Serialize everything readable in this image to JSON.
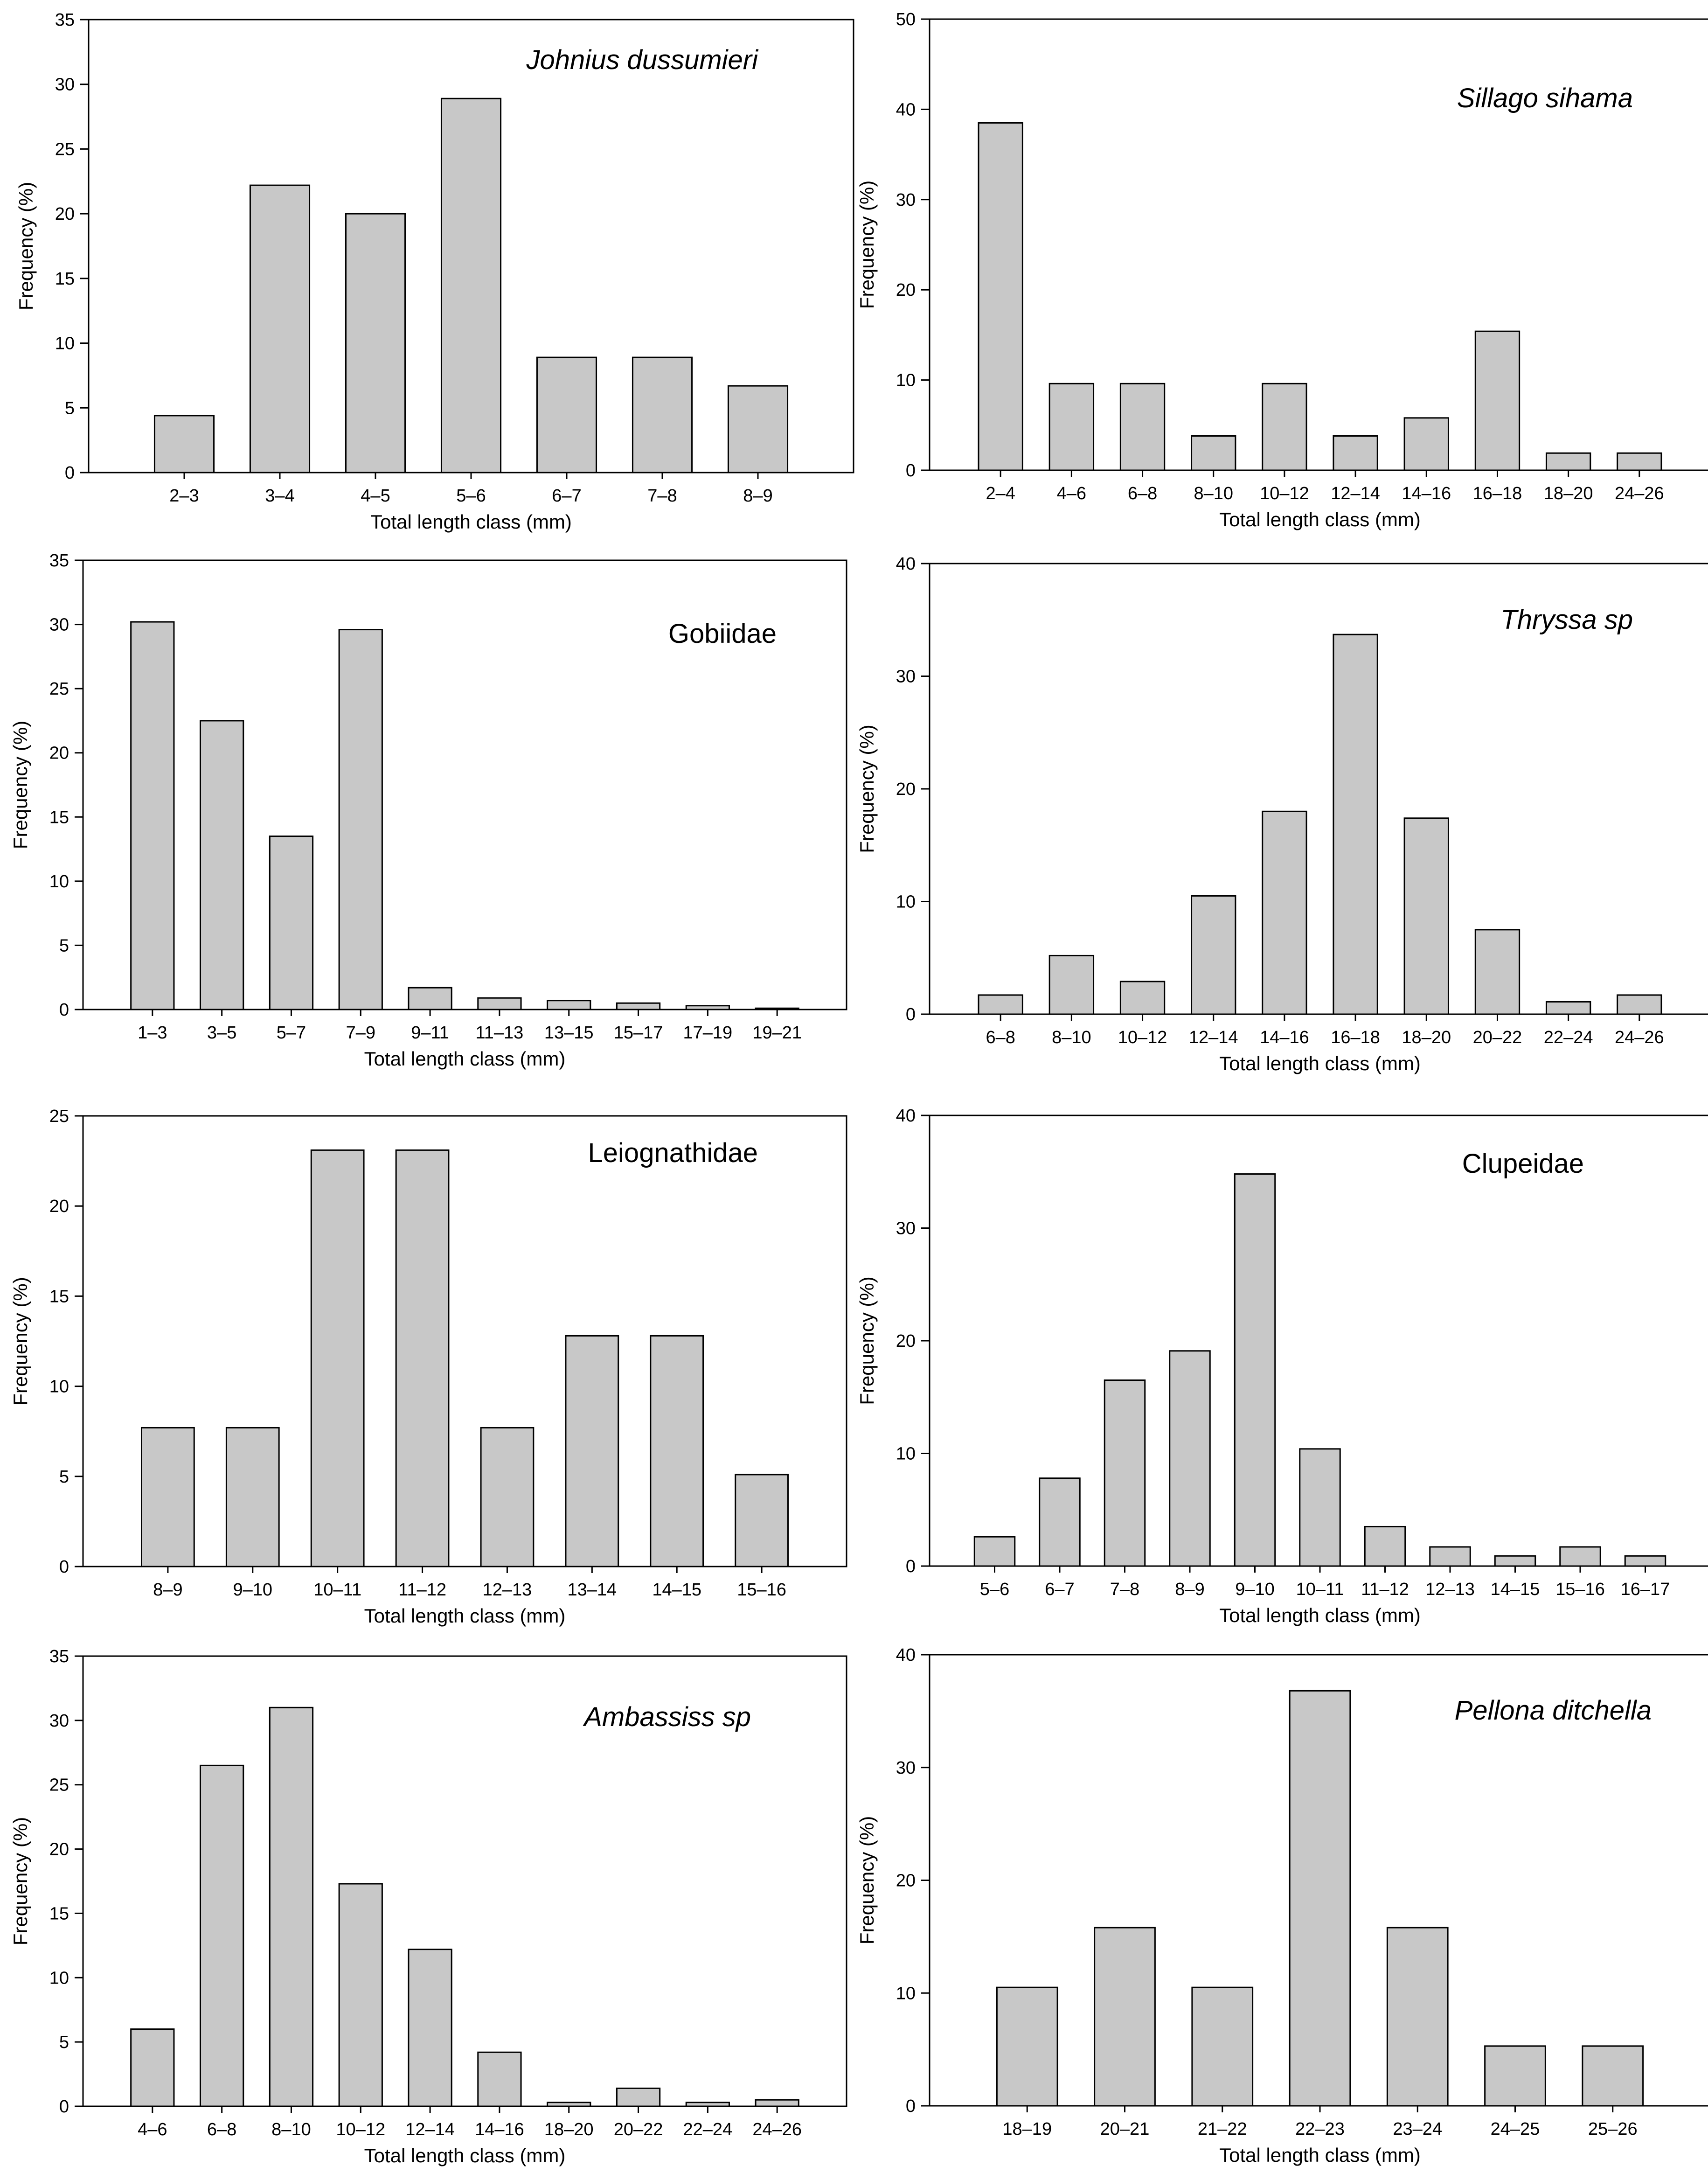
{
  "colors": {
    "bar_fill": "#c8c8c8",
    "bar_stroke": "#000000",
    "axis": "#000000",
    "background": "#ffffff"
  },
  "chart_data": [
    {
      "type": "bar",
      "title": "Johnius dussumieri",
      "title_italic": true,
      "xlabel": "Total length class (mm)",
      "ylabel": "Frequency (%)",
      "categories": [
        "2–3",
        "3–4",
        "4–5",
        "5–6",
        "6–7",
        "7–8",
        "8–9"
      ],
      "values": [
        4.4,
        22.2,
        20.0,
        28.9,
        8.9,
        8.9,
        6.7
      ],
      "ylim": [
        0,
        35
      ],
      "yticks": [
        0,
        5,
        10,
        15,
        20,
        25,
        30,
        35
      ],
      "grid": false
    },
    {
      "type": "bar",
      "title": "Sillago sihama",
      "title_italic": true,
      "xlabel": "Total length class (mm)",
      "ylabel": "Frequency (%)",
      "categories": [
        "2–4",
        "4–6",
        "6–8",
        "8–10",
        "10–12",
        "12–14",
        "14–16",
        "16–18",
        "18–20",
        "24–26"
      ],
      "values": [
        38.5,
        9.6,
        9.6,
        3.8,
        9.6,
        3.8,
        5.8,
        15.4,
        1.9,
        1.9
      ],
      "ylim": [
        0,
        50
      ],
      "yticks": [
        0,
        10,
        20,
        30,
        40,
        50
      ],
      "grid": false
    },
    {
      "type": "bar",
      "title": "Gobiidae",
      "title_italic": false,
      "xlabel": "Total length class (mm)",
      "ylabel": "Frequency (%)",
      "categories": [
        "1–3",
        "3–5",
        "5–7",
        "7–9",
        "9–11",
        "11–13",
        "13–15",
        "15–17",
        "17–19",
        "19–21"
      ],
      "values": [
        30.2,
        22.5,
        13.5,
        29.6,
        1.7,
        0.9,
        0.7,
        0.5,
        0.3,
        0.1
      ],
      "ylim": [
        0,
        35
      ],
      "yticks": [
        0,
        5,
        10,
        15,
        20,
        25,
        30,
        35
      ],
      "grid": false
    },
    {
      "type": "bar",
      "title": "Thryssa sp",
      "title_italic": true,
      "xlabel": "Total length class (mm)",
      "ylabel": "Frequency (%)",
      "categories": [
        "6–8",
        "8–10",
        "10–12",
        "12–14",
        "14–16",
        "16–18",
        "18–20",
        "20–22",
        "22–24",
        "24–26"
      ],
      "values": [
        1.7,
        5.2,
        2.9,
        10.5,
        18.0,
        33.7,
        17.4,
        7.5,
        1.1,
        1.7
      ],
      "ylim": [
        0,
        40
      ],
      "yticks": [
        0,
        10,
        20,
        30,
        40
      ],
      "grid": false
    },
    {
      "type": "bar",
      "title": "Leiognathidae",
      "title_italic": false,
      "xlabel": "Total length class (mm)",
      "ylabel": "Frequency (%)",
      "categories": [
        "8–9",
        "9–10",
        "10–11",
        "11–12",
        "12–13",
        "13–14",
        "14–15",
        "15–16"
      ],
      "values": [
        7.7,
        7.7,
        23.1,
        23.1,
        7.7,
        12.8,
        12.8,
        5.1
      ],
      "ylim": [
        0,
        25
      ],
      "yticks": [
        0,
        5,
        10,
        15,
        20,
        25
      ],
      "grid": false
    },
    {
      "type": "bar",
      "title": "Clupeidae",
      "title_italic": false,
      "xlabel": "Total length class (mm)",
      "ylabel": "Frequency (%)",
      "categories": [
        "5–6",
        "6–7",
        "7–8",
        "8–9",
        "9–10",
        "10–11",
        "11–12",
        "12–13",
        "14–15",
        "15–16",
        "16–17"
      ],
      "values": [
        2.6,
        7.8,
        16.5,
        19.1,
        34.8,
        10.4,
        3.5,
        1.7,
        0.9,
        1.7,
        0.9
      ],
      "ylim": [
        0,
        40
      ],
      "yticks": [
        0,
        10,
        20,
        30,
        40
      ],
      "grid": false
    },
    {
      "type": "bar",
      "title": "Ambassiss sp",
      "title_italic": true,
      "xlabel": "Total length class (mm)",
      "ylabel": "Frequency (%)",
      "categories": [
        "4–6",
        "6–8",
        "8–10",
        "10–12",
        "12–14",
        "14–16",
        "18–20",
        "20–22",
        "22–24",
        "24–26"
      ],
      "values": [
        6.0,
        26.5,
        31.0,
        17.3,
        12.2,
        4.2,
        0.3,
        1.4,
        0.3,
        0.5
      ],
      "ylim": [
        0,
        35
      ],
      "yticks": [
        0,
        5,
        10,
        15,
        20,
        25,
        30,
        35
      ],
      "grid": false
    },
    {
      "type": "bar",
      "title": "Pellona ditchella",
      "title_italic": true,
      "xlabel": "Total length class (mm)",
      "ylabel": "Frequency (%)",
      "categories": [
        "18–19",
        "20–21",
        "21–22",
        "22–23",
        "23–24",
        "24–25",
        "25–26"
      ],
      "values": [
        10.5,
        15.8,
        10.5,
        36.8,
        15.8,
        5.3,
        5.3
      ],
      "ylim": [
        0,
        40
      ],
      "yticks": [
        0,
        10,
        20,
        30,
        40
      ],
      "grid": false
    }
  ]
}
